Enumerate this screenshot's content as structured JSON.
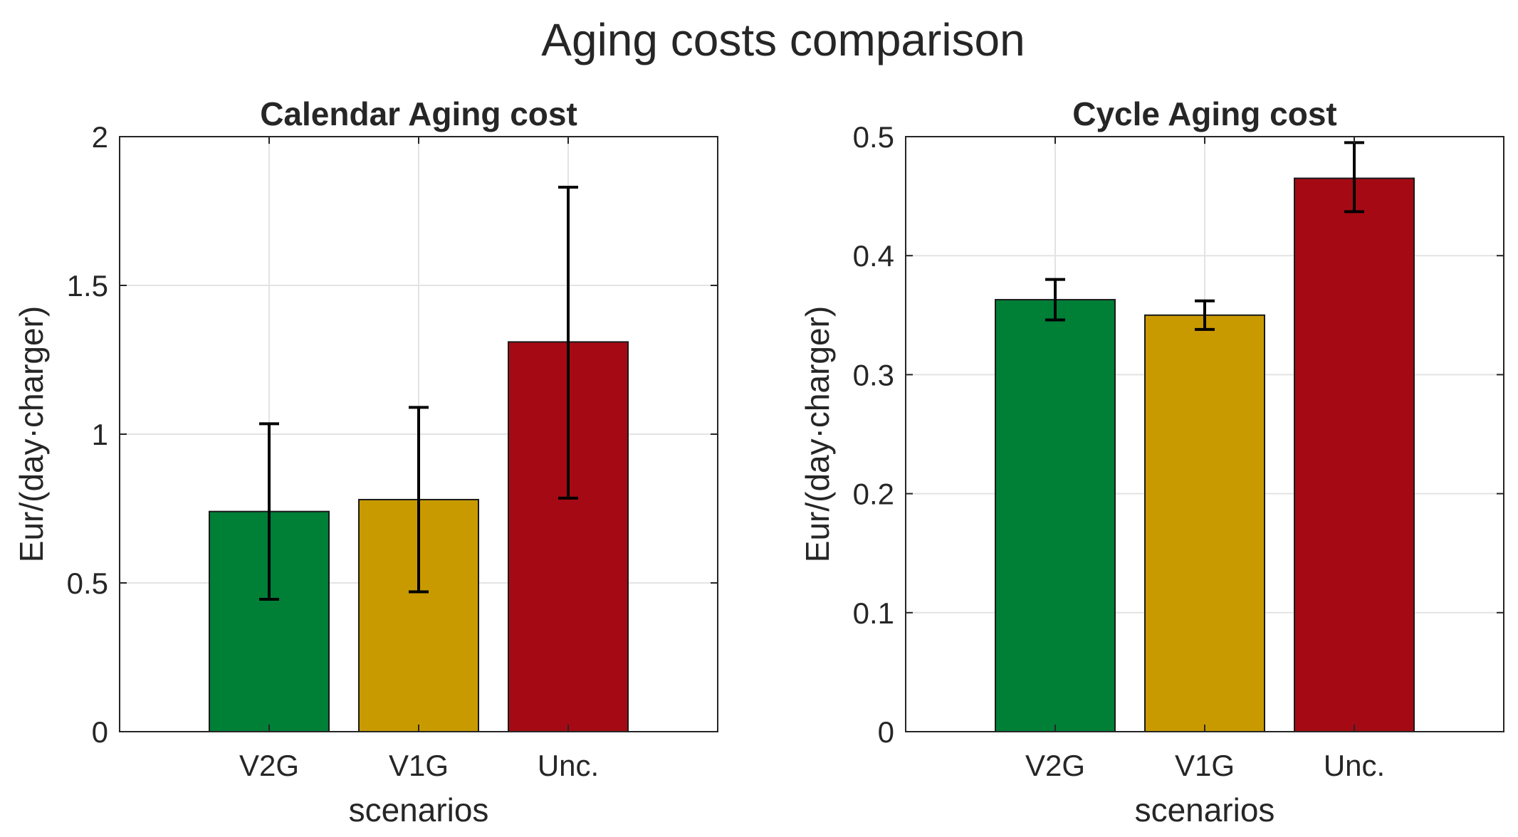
{
  "figure": {
    "title": "Aging costs comparison"
  },
  "chart_data": [
    {
      "type": "bar",
      "title": "Calendar Aging cost",
      "xlabel": "scenarios",
      "ylabel": "Eur/(day·charger)",
      "categories": [
        "V2G",
        "V1G",
        "Unc."
      ],
      "values": [
        0.74,
        0.78,
        1.31
      ],
      "error_low": [
        0.445,
        0.47,
        0.785
      ],
      "error_high": [
        1.035,
        1.09,
        1.83
      ],
      "colors": [
        "#007f37",
        "#c99a00",
        "#a50a14"
      ],
      "ylim": [
        0,
        2
      ],
      "xlim": [
        0,
        4
      ],
      "yticks": [
        0,
        0.5,
        1,
        1.5,
        2
      ],
      "ytick_labels": [
        "0",
        "0.5",
        "1",
        "1.5",
        "2"
      ],
      "grid": true
    },
    {
      "type": "bar",
      "title": "Cycle Aging cost",
      "xlabel": "scenarios",
      "ylabel": "Eur/(day·charger)",
      "categories": [
        "V2G",
        "V1G",
        "Unc."
      ],
      "values": [
        0.363,
        0.35,
        0.465
      ],
      "error_low": [
        0.346,
        0.338,
        0.437
      ],
      "error_high": [
        0.38,
        0.362,
        0.495
      ],
      "colors": [
        "#007f37",
        "#c99a00",
        "#a50a14"
      ],
      "ylim": [
        0,
        0.5
      ],
      "xlim": [
        0,
        4
      ],
      "yticks": [
        0,
        0.1,
        0.2,
        0.3,
        0.4,
        0.5
      ],
      "ytick_labels": [
        "0",
        "0.1",
        "0.2",
        "0.3",
        "0.4",
        "0.5"
      ],
      "grid": true
    }
  ]
}
